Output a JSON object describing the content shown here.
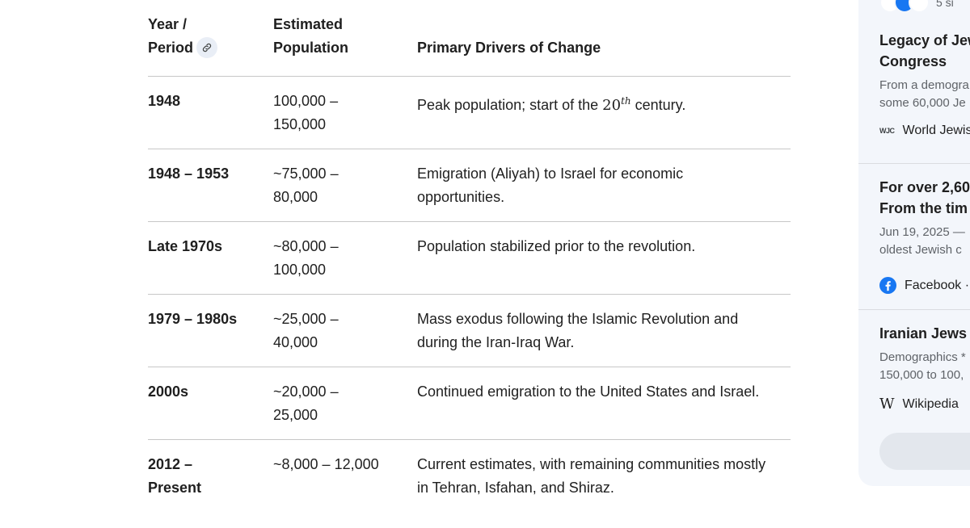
{
  "table": {
    "headers": {
      "col1_line1": "Year /",
      "col1_line2": "Period",
      "col2_line1": "Estimated",
      "col2_line2": "Population",
      "col3": "Primary Drivers of Change"
    },
    "rows": [
      {
        "period": "1948",
        "population_line1": "100,000 –",
        "population_line2": "150,000",
        "driver_pre": "Peak population; start of the ",
        "driver_num": "20",
        "driver_sup": "th",
        "driver_post": " century."
      },
      {
        "period": "1948 – 1953",
        "population_line1": "~75,000 –",
        "population_line2": "80,000",
        "driver_line1": "Emigration (Aliyah) to Israel for economic",
        "driver_line2": "opportunities."
      },
      {
        "period": "Late 1970s",
        "population_line1": "~80,000 –",
        "population_line2": "100,000",
        "driver_line1": "Population stabilized prior to the revolution."
      },
      {
        "period": "1979 – 1980s",
        "population_line1": "~25,000 –",
        "population_line2": "40,000",
        "driver_line1": "Mass exodus following the Islamic Revolution and",
        "driver_line2": "during the Iran-Iraq War."
      },
      {
        "period": "2000s",
        "population_line1": "~20,000 –",
        "population_line2": "25,000",
        "driver_line1": "Continued emigration to the United States and Israel."
      },
      {
        "period_line1": "2012 –",
        "period_line2": "Present",
        "population_line1": "~8,000 – 12,000",
        "driver_line1": "Current estimates, with remaining communities mostly",
        "driver_line2": "in Tehran, Isfahan, and Shiraz."
      }
    ]
  },
  "sources": {
    "top_count": "5 si",
    "cards": [
      {
        "title_line1": "Legacy of Jew",
        "title_line2": "Congress",
        "snippet_line1": "From a demogra",
        "snippet_line2": "some 60,000 Je",
        "site": "World Jewis",
        "site_logo": "WJC"
      },
      {
        "title_line1": "For over 2,60",
        "title_line2": "From the tim",
        "snippet_line1": "Jun 19, 2025 —",
        "snippet_line2": "oldest Jewish c",
        "site": "Facebook ·"
      },
      {
        "title_line1": "Iranian Jews",
        "snippet_line1": "Demographics *",
        "snippet_line2": "150,000 to 100,",
        "site": "Wikipedia",
        "site_logo": "W"
      }
    ]
  },
  "colors": {
    "accent": "#1877f2",
    "panel": "#f3f6fb",
    "divider": "#c7c7c7"
  },
  "icons": [
    "link-icon",
    "facebook-icon",
    "wikipedia-icon",
    "wjc-logo-icon"
  ]
}
